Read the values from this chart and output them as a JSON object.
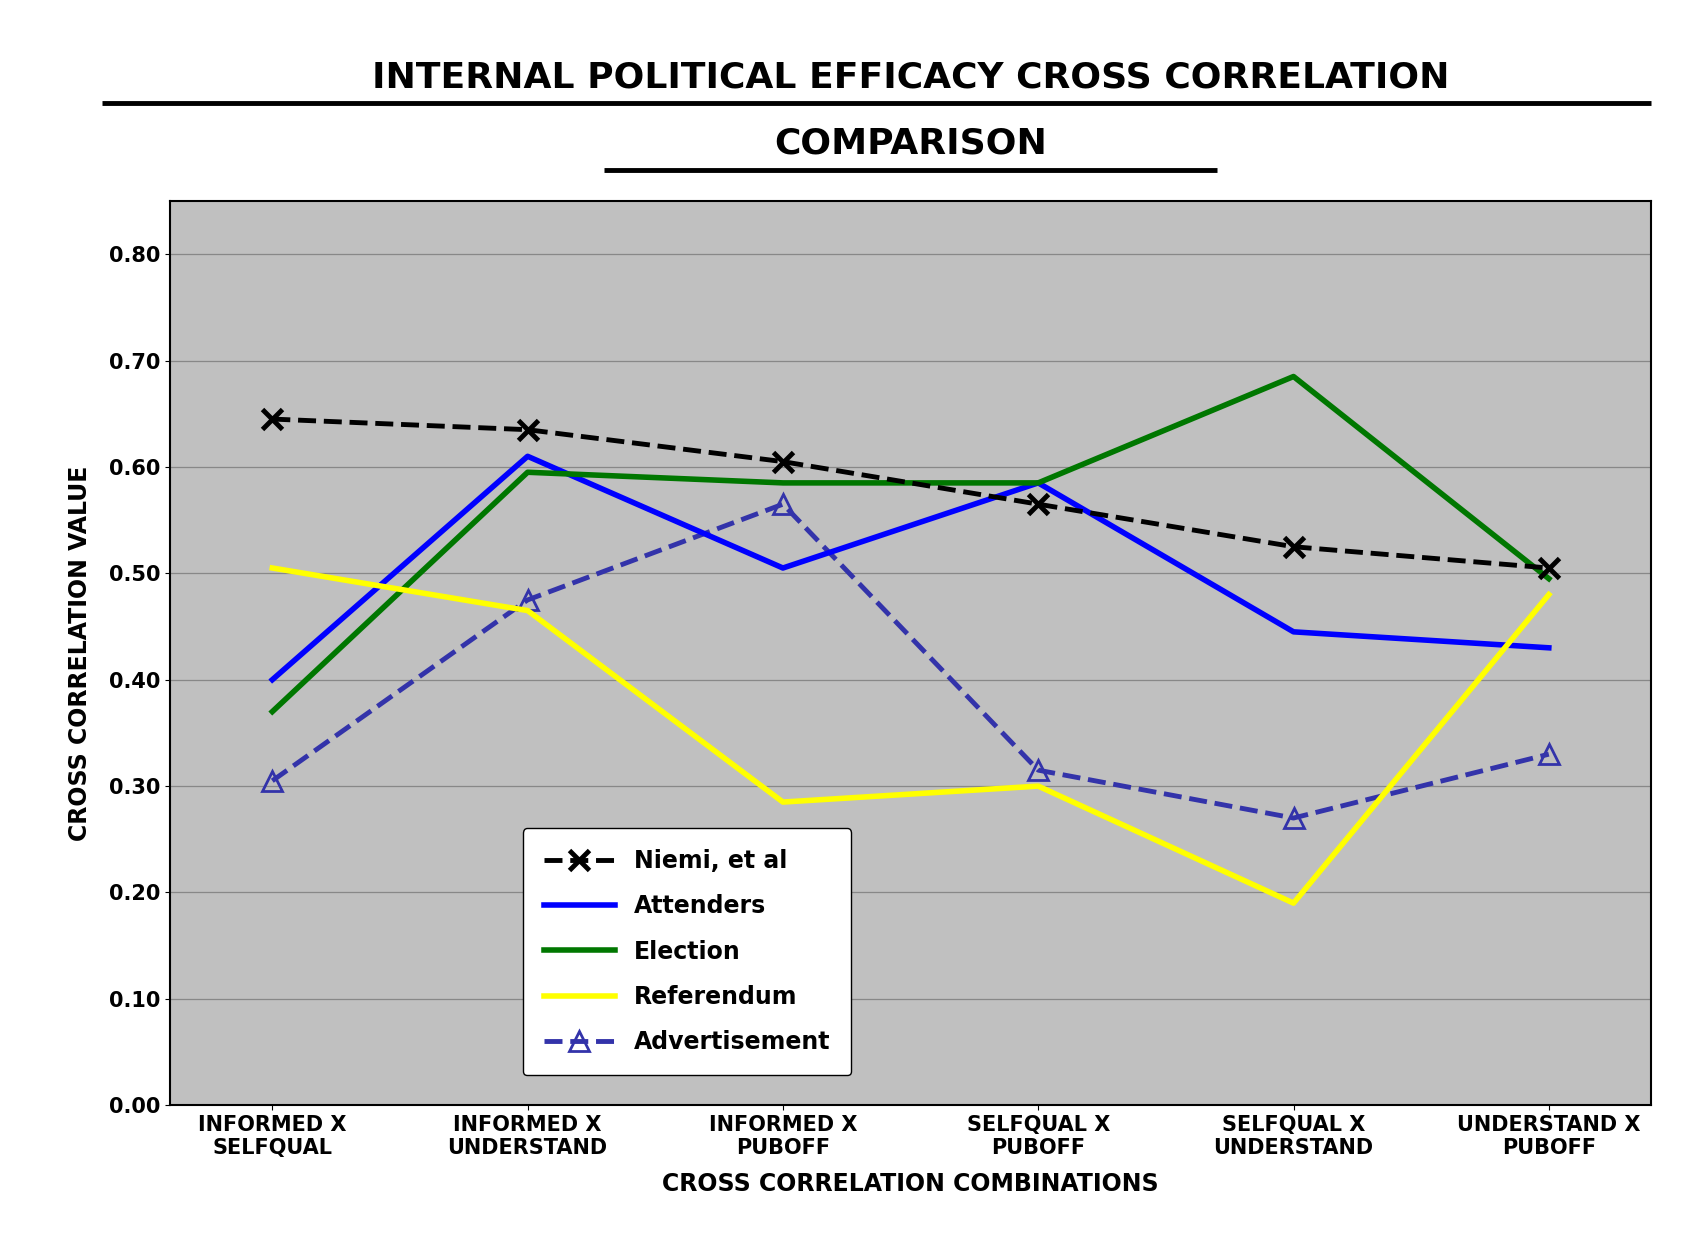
{
  "title_line1": "INTERNAL POLITICAL EFFICACY CROSS CORRELATION",
  "title_line2": "COMPARISON",
  "xlabel": "CROSS CORRELATION COMBINATIONS",
  "ylabel": "CROSS CORRELATION VALUE",
  "categories": [
    "INFORMED X\nSELFQUAL",
    "INFORMED X\nUNDERSTAND",
    "INFORMED X\nPUBOFF",
    "SELFQUAL X\nPUBOFF",
    "SELFQUAL X\nUNDERSTAND",
    "UNDERSTAND X\nPUBOFF"
  ],
  "series": {
    "Niemi, et al": {
      "values": [
        0.645,
        0.635,
        0.605,
        0.565,
        0.525,
        0.505
      ],
      "color": "#000000",
      "linestyle": "dashed",
      "linewidth": 3.5,
      "marker": "x",
      "markersize": 15,
      "markeredgewidth": 3.5,
      "zorder": 5
    },
    "Attenders": {
      "values": [
        0.4,
        0.61,
        0.505,
        0.585,
        0.445,
        0.43
      ],
      "color": "#0000FF",
      "linestyle": "solid",
      "linewidth": 4.0,
      "marker": null,
      "markersize": 0,
      "zorder": 4
    },
    "Election": {
      "values": [
        0.37,
        0.595,
        0.585,
        0.585,
        0.685,
        0.495
      ],
      "color": "#007700",
      "linestyle": "solid",
      "linewidth": 4.0,
      "marker": null,
      "markersize": 0,
      "zorder": 4
    },
    "Referendum": {
      "values": [
        0.505,
        0.465,
        0.285,
        0.3,
        0.19,
        0.48
      ],
      "color": "#FFFF00",
      "linestyle": "solid",
      "linewidth": 4.0,
      "marker": null,
      "markersize": 0,
      "zorder": 4
    },
    "Advertisement": {
      "values": [
        0.305,
        0.475,
        0.565,
        0.315,
        0.27,
        0.33
      ],
      "color": "#3333AA",
      "linestyle": "dashed",
      "linewidth": 3.5,
      "marker": "^",
      "markersize": 14,
      "markeredgewidth": 2.0,
      "zorder": 3
    }
  },
  "ylim": [
    0.0,
    0.85
  ],
  "yticks": [
    0.0,
    0.1,
    0.2,
    0.3,
    0.4,
    0.5,
    0.6,
    0.7,
    0.8
  ],
  "plot_bg_color": "#C0C0C0",
  "title_fontsize": 26,
  "axis_label_fontsize": 17,
  "tick_fontsize": 15,
  "legend_fontsize": 17
}
